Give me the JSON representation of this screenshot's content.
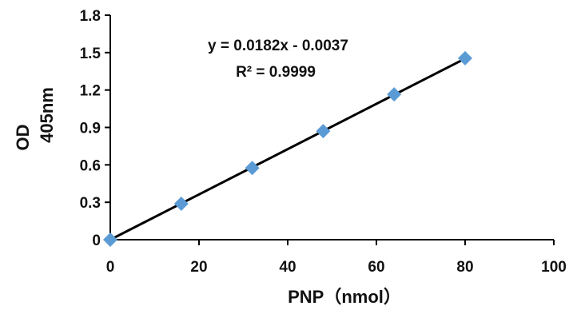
{
  "chart_data": {
    "type": "scatter",
    "title": "",
    "xlabel": "PNP（nmol）",
    "ylabel_lines": [
      "OD",
      "405nm"
    ],
    "xlim": [
      0,
      100
    ],
    "ylim": [
      0,
      1.8
    ],
    "x_ticks": [
      0,
      20,
      40,
      60,
      80,
      100
    ],
    "y_ticks": [
      0,
      0.3,
      0.6,
      0.9,
      1.2,
      1.5,
      1.8
    ],
    "x_tick_labels": [
      "0",
      "20",
      "40",
      "60",
      "80",
      "100"
    ],
    "y_tick_labels": [
      "0",
      "0.3",
      "0.6",
      "0.9",
      "1.2",
      "1.5",
      "1.8"
    ],
    "grid": false,
    "legend": "none",
    "series": [
      {
        "marker": "diamond",
        "color": "#5b9bd5",
        "x": [
          0,
          16,
          32,
          48,
          64,
          80
        ],
        "y": [
          0.0,
          0.288,
          0.575,
          0.87,
          1.165,
          1.455
        ]
      }
    ],
    "trendline": {
      "type": "linear",
      "slope": 0.0182,
      "intercept": -0.0037,
      "x_range": [
        0,
        80
      ],
      "color": "#000000"
    },
    "annotations": {
      "equation": "y = 0.0182x - 0.0037",
      "r_squared": "R² = 0.9999"
    }
  }
}
